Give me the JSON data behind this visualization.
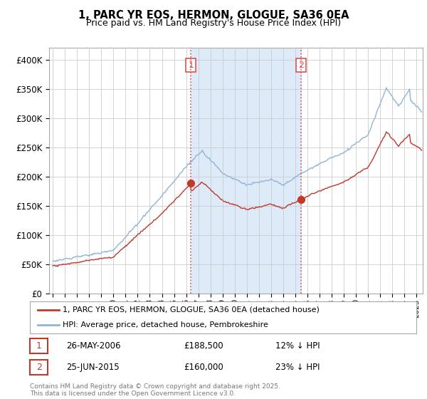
{
  "title": "1, PARC YR EOS, HERMON, GLOGUE, SA36 0EA",
  "subtitle": "Price paid vs. HM Land Registry's House Price Index (HPI)",
  "ylim": [
    0,
    420000
  ],
  "yticks": [
    0,
    50000,
    100000,
    150000,
    200000,
    250000,
    300000,
    350000,
    400000
  ],
  "hpi_color": "#92b4d4",
  "hpi_shade_color": "#ddeaf7",
  "price_color": "#c0392b",
  "vline_color": "#e05050",
  "transaction1_year": 2006.4,
  "transaction1_price": 188500,
  "transaction2_year": 2015.47,
  "transaction2_price": 160000,
  "legend_price_label": "1, PARC YR EOS, HERMON, GLOGUE, SA36 0EA (detached house)",
  "legend_hpi_label": "HPI: Average price, detached house, Pembrokeshire",
  "ann1_num": "1",
  "ann1_date": "26-MAY-2006",
  "ann1_price": "£188,500",
  "ann1_pct": "12% ↓ HPI",
  "ann1_color": "#c0392b",
  "ann2_num": "2",
  "ann2_date": "25-JUN-2015",
  "ann2_price": "£160,000",
  "ann2_pct": "23% ↓ HPI",
  "ann2_color": "#c0392b",
  "footer": "Contains HM Land Registry data © Crown copyright and database right 2025.\nThis data is licensed under the Open Government Licence v3.0.",
  "xlim_left": 1994.7,
  "xlim_right": 2025.5
}
